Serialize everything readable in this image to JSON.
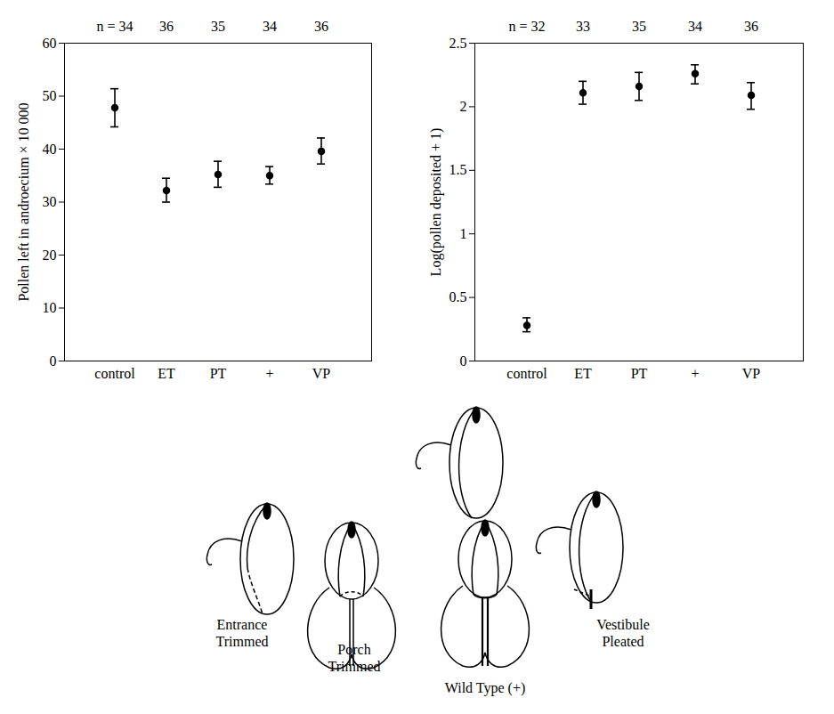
{
  "chart_data": [
    {
      "type": "scatter",
      "categories": [
        "control",
        "ET",
        "PT",
        "+",
        "VP"
      ],
      "n_label": "n =",
      "n": [
        34,
        36,
        35,
        34,
        36
      ],
      "y_label": "Pollen left in androecium × 10 000",
      "values": [
        47.8,
        32.2,
        35.2,
        35.0,
        39.6
      ],
      "error_low": [
        44.2,
        30.0,
        32.8,
        33.4,
        37.2
      ],
      "error_high": [
        51.4,
        34.5,
        37.7,
        36.7,
        42.1
      ],
      "ylim": [
        0,
        60
      ],
      "yticks": [
        0,
        10,
        20,
        30,
        40,
        50,
        60
      ],
      "marker": "circle",
      "color": "#000000"
    },
    {
      "type": "scatter",
      "categories": [
        "control",
        "ET",
        "PT",
        "+",
        "VP"
      ],
      "n_label": "n =",
      "n": [
        32,
        33,
        35,
        34,
        36
      ],
      "y_label": "Log(pollen deposited + 1)",
      "values": [
        0.28,
        2.11,
        2.16,
        2.26,
        2.09
      ],
      "error_low": [
        0.23,
        2.02,
        2.05,
        2.18,
        1.98
      ],
      "error_high": [
        0.34,
        2.2,
        2.27,
        2.33,
        2.19
      ],
      "ylim": [
        0,
        2.5
      ],
      "yticks": [
        0,
        0.5,
        1,
        1.5,
        2,
        2.5
      ],
      "marker": "circle",
      "color": "#000000"
    }
  ],
  "diagram": {
    "labels": [
      "Entrance Trimmed",
      "Porch Trimmed",
      "Wild Type (+)",
      "Vestibule Pleated"
    ]
  }
}
